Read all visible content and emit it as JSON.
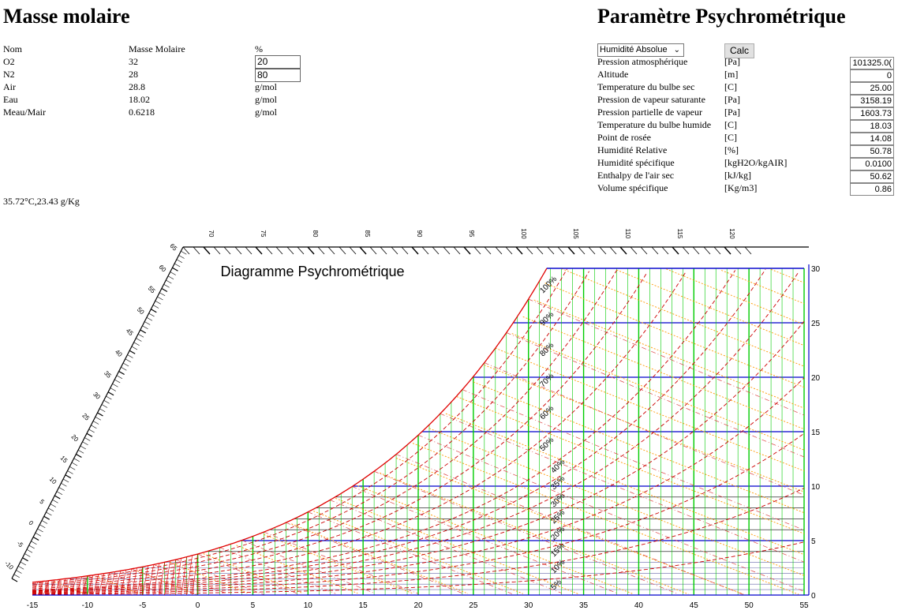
{
  "masse": {
    "title": "Masse molaire",
    "headers": [
      "Nom",
      "Masse Molaire",
      "%"
    ],
    "rows": [
      {
        "name": "O2",
        "value": "32",
        "input": "20"
      },
      {
        "name": "N2",
        "value": "28",
        "input": "80"
      },
      {
        "name": "Air",
        "value": "28.8",
        "unit": "g/mol"
      },
      {
        "name": "Eau",
        "value": "18.02",
        "unit": "g/mol"
      },
      {
        "name": "Meau/Mair",
        "value": "0.6218",
        "unit": "g/mol"
      }
    ],
    "cursor_readout": "35.72°C,23.43 g/Kg"
  },
  "psychro": {
    "title": "Paramètre Psychrométrique",
    "select_value": "Humidité Absolue",
    "calc_label": "Calc",
    "params": [
      {
        "label": "Pression atmosphérique",
        "unit": "[Pa]",
        "value": "101325.0("
      },
      {
        "label": "Altitude",
        "unit": "[m]",
        "value": "0"
      },
      {
        "label": "Temperature du bulbe sec",
        "unit": "[C]",
        "value": "25.00"
      },
      {
        "label": "Pression de vapeur saturante",
        "unit": "[Pa]",
        "value": "3158.19"
      },
      {
        "label": "Pression partielle de vapeur",
        "unit": "[Pa]",
        "value": "1603.73"
      },
      {
        "label": "Temperature du bulbe humide",
        "unit": "[C]",
        "value": "18.03"
      },
      {
        "label": "Point de rosée",
        "unit": "[C]",
        "value": "14.08"
      },
      {
        "label": "Humidité Relative",
        "unit": "[%]",
        "value": "50.78"
      },
      {
        "label": "Humidité spécifique",
        "unit": "[kgH2O/kgAIR]",
        "value": "0.0100"
      },
      {
        "label": "Enthalpy de l'air sec",
        "unit": "[kJ/kg]",
        "value": "50.62"
      },
      {
        "label": "Volume spécifique",
        "unit": "[Kg/m3]",
        "value": "0.86"
      }
    ]
  },
  "chart_data": {
    "type": "line",
    "title": "Diagramme Psychrométrique",
    "x_ticks": [
      "-15",
      "-10",
      "-5",
      "0",
      "5",
      "10",
      "15",
      "20",
      "25",
      "30",
      "35",
      "40",
      "45",
      "50",
      "55"
    ],
    "y_ticks": [
      "0",
      "5",
      "10",
      "15",
      "20",
      "25",
      "30"
    ],
    "rh_labels": [
      "5%",
      "10%",
      "15%",
      "20%",
      "25%",
      "30%",
      "35%",
      "40%",
      "50%",
      "60%",
      "70%",
      "80%",
      "90%",
      "100%"
    ],
    "enthalpy_top_labels": [
      "70",
      "75",
      "80",
      "85",
      "90",
      "95",
      "100",
      "105",
      "110",
      "115",
      "120"
    ],
    "enthalpy_diag_labels": [
      "-10",
      "-5",
      "0",
      "5",
      "10",
      "15",
      "20",
      "25",
      "30",
      "35",
      "40",
      "45",
      "50",
      "55",
      "60",
      "65"
    ],
    "xlim": [
      -15,
      55
    ],
    "ylim": [
      0,
      30
    ],
    "colors": {
      "saturation": "#e00000",
      "rh": "#cc0000",
      "enthalpy": "#ff9900",
      "drybulb": "#00cc00",
      "humidity": "#0000cc",
      "axis": "#0000cc"
    }
  }
}
